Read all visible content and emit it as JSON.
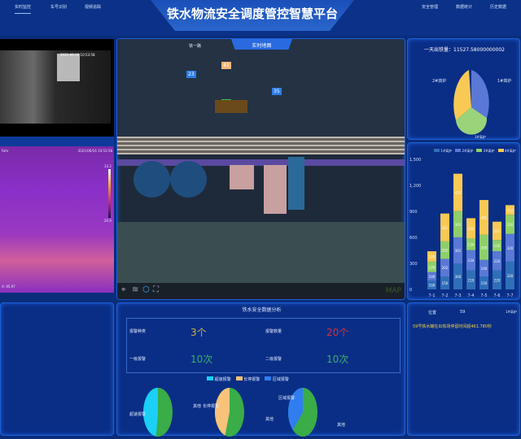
{
  "header": {
    "title": "铁水物流安全调度管控智慧平台",
    "nav_left": [
      "实时监控",
      "车号识别",
      "视频追踪"
    ],
    "nav_right": [
      "安全管理",
      "数据统计",
      "历史数据"
    ]
  },
  "video": {
    "timestamp": "2021-06-16 10:53:58"
  },
  "thermal": {
    "label": "Fahr",
    "timestamp": "2021/06/16 10:53:58",
    "scale_max": "33.2",
    "scale_min": "20.9",
    "readout": "X: 95.97"
  },
  "map": {
    "title": "实时地图",
    "road_label": "铁一路",
    "markers": [
      {
        "id": "23",
        "color": "#2f7de6"
      },
      {
        "id": "41",
        "color": "#f3b77a"
      },
      {
        "id": "14",
        "color": "#2ec34a"
      },
      {
        "id": "35",
        "color": "#2f7de6"
      }
    ],
    "watermark": "MAP",
    "tools": [
      "location-icon",
      "layers-icon",
      "cube-icon",
      "fullscreen-icon"
    ]
  },
  "pie_top": {
    "title": "一天出铁量：11527.58000000002",
    "labels": [
      "1#高炉",
      "2#高炉",
      "3#高炉"
    ],
    "colors": [
      "#5a78d6",
      "#9ad37a",
      "#f8c954"
    ]
  },
  "chart_data": {
    "type": "bar",
    "stacked": true,
    "categories": [
      "7-1",
      "7-2",
      "7-3",
      "7-4",
      "7-5",
      "7-6",
      "7-7"
    ],
    "ylim": [
      0,
      1500
    ],
    "yticks": [
      "0",
      "300",
      "600",
      "900",
      "1,200",
      "1,500"
    ],
    "legend_position": "top",
    "series": [
      {
        "name": "1#高炉",
        "color": "#2f6fb8",
        "values": [
          100,
          150,
          300,
          219,
          150,
          220,
          320
        ]
      },
      {
        "name": "2#高炉",
        "color": "#5a78d6",
        "values": [
          100,
          202,
          301,
          234,
          190,
          220,
          320
        ]
      },
      {
        "name": "3#高炉",
        "color": "#8fcf6a",
        "values": [
          120,
          202,
          301,
          134,
          290,
          130,
          220
        ]
      },
      {
        "name": "4#高炉",
        "color": "#f8c954",
        "values": [
          120,
          321,
          432,
          234,
          401,
          211,
          112
        ]
      }
    ]
  },
  "safety": {
    "title": "铁水安全数据分析",
    "stats": [
      {
        "label": "报警种类",
        "value": "3个",
        "color": "#c9b04a"
      },
      {
        "label": "报警数量",
        "value": "20个",
        "color": "#d0303a"
      },
      {
        "label": "一级报警",
        "value": "10次",
        "color": "#3fae6a"
      },
      {
        "label": "二级报警",
        "value": "10次",
        "color": "#3fae6a"
      }
    ],
    "legend": [
      {
        "label": "超速报警",
        "color": "#1ad0f5"
      },
      {
        "label": "长停报警",
        "color": "#f8c27a"
      },
      {
        "label": "区域报警",
        "color": "#2f7df0"
      }
    ],
    "pies": [
      {
        "a": "超速报警",
        "b": "其他",
        "ca": "#1ad0f5",
        "share": 0.48
      },
      {
        "a": "长停报警",
        "b": "其他",
        "ca": "#f8c27a",
        "share": 0.45
      },
      {
        "a": "区域报警",
        "b": "其他",
        "ca": "#2f7df0",
        "share": 0.38
      }
    ]
  },
  "alerts": {
    "col1": "位置",
    "col2": "59",
    "col3": "1#高炉",
    "message": "59号铁水罐在出铁场停留时间超461.780秒"
  }
}
